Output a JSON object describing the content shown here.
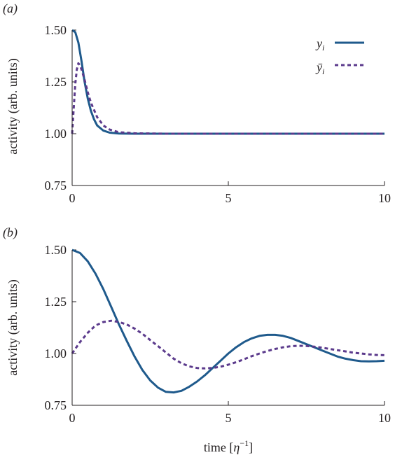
{
  "chart_data": [
    {
      "type": "line",
      "panel_label": "(a)",
      "ylabel": "activity (arb. units)",
      "xlabel": "",
      "xlim": [
        0,
        10
      ],
      "ylim": [
        0.75,
        1.5
      ],
      "xticks": [
        0,
        5,
        10
      ],
      "xtick_labels": [
        "0",
        "5",
        "10"
      ],
      "yticks": [
        0.75,
        1.0,
        1.25,
        1.5
      ],
      "ytick_labels": [
        "0.75",
        "1.00",
        "1.25",
        "1.50"
      ],
      "grid": false,
      "legend_position": "top-right",
      "series": [
        {
          "name": "y_i",
          "color": "#1f5a8c",
          "style": "solid",
          "x": [
            0,
            0.1,
            0.2,
            0.3,
            0.4,
            0.5,
            0.6,
            0.7,
            0.8,
            1.0,
            1.2,
            1.5,
            2.0,
            3.0,
            5.0,
            10.0
          ],
          "y": [
            1.5,
            1.49,
            1.44,
            1.35,
            1.25,
            1.17,
            1.11,
            1.07,
            1.04,
            1.015,
            1.005,
            1.001,
            1.0,
            1.0,
            1.0,
            1.0
          ]
        },
        {
          "name": "ȳ_i",
          "color": "#5b3a8c",
          "style": "dashed",
          "x": [
            0,
            0.05,
            0.1,
            0.15,
            0.2,
            0.25,
            0.3,
            0.4,
            0.5,
            0.6,
            0.8,
            1.0,
            1.2,
            1.5,
            2.0,
            3.0,
            5.0,
            10.0
          ],
          "y": [
            1.0,
            1.12,
            1.24,
            1.31,
            1.34,
            1.33,
            1.31,
            1.26,
            1.2,
            1.15,
            1.08,
            1.04,
            1.02,
            1.007,
            1.002,
            1.0,
            1.0,
            1.0
          ]
        }
      ]
    },
    {
      "type": "line",
      "panel_label": "(b)",
      "ylabel": "activity (arb. units)",
      "xlabel": "time [η⁻¹]",
      "xlim": [
        0,
        10
      ],
      "ylim": [
        0.75,
        1.5
      ],
      "xticks": [
        0,
        5,
        10
      ],
      "xtick_labels": [
        "0",
        "5",
        "10"
      ],
      "yticks": [
        0.75,
        1.0,
        1.25,
        1.5
      ],
      "ytick_labels": [
        "0.75",
        "1.00",
        "1.25",
        "1.50"
      ],
      "grid": false,
      "series": [
        {
          "name": "y_i",
          "color": "#1f5a8c",
          "style": "solid",
          "x": [
            0,
            0.25,
            0.5,
            0.75,
            1.0,
            1.25,
            1.5,
            1.75,
            2.0,
            2.25,
            2.5,
            2.75,
            3.0,
            3.25,
            3.5,
            3.75,
            4.0,
            4.25,
            4.5,
            4.75,
            5.0,
            5.25,
            5.5,
            5.75,
            6.0,
            6.25,
            6.5,
            6.75,
            7.0,
            7.25,
            7.5,
            7.75,
            8.0,
            8.25,
            8.5,
            8.75,
            9.0,
            9.25,
            9.5,
            9.75,
            10.0
          ],
          "y": [
            1.5,
            1.485,
            1.445,
            1.385,
            1.31,
            1.225,
            1.14,
            1.06,
            0.985,
            0.92,
            0.87,
            0.835,
            0.815,
            0.812,
            0.82,
            0.84,
            0.865,
            0.895,
            0.93,
            0.965,
            1.0,
            1.03,
            1.055,
            1.073,
            1.085,
            1.09,
            1.09,
            1.085,
            1.075,
            1.06,
            1.045,
            1.03,
            1.015,
            1.0,
            0.985,
            0.975,
            0.968,
            0.963,
            0.962,
            0.963,
            0.965
          ]
        },
        {
          "name": "ȳ_i",
          "color": "#5b3a8c",
          "style": "dashed",
          "x": [
            0,
            0.25,
            0.5,
            0.75,
            1.0,
            1.25,
            1.5,
            1.75,
            2.0,
            2.25,
            2.5,
            2.75,
            3.0,
            3.25,
            3.5,
            3.75,
            4.0,
            4.25,
            4.5,
            4.75,
            5.0,
            5.25,
            5.5,
            5.75,
            6.0,
            6.25,
            6.5,
            6.75,
            7.0,
            7.25,
            7.5,
            7.75,
            8.0,
            8.25,
            8.5,
            8.75,
            9.0,
            9.25,
            9.5,
            9.75,
            10.0
          ],
          "y": [
            1.0,
            1.055,
            1.1,
            1.135,
            1.152,
            1.158,
            1.152,
            1.14,
            1.12,
            1.095,
            1.065,
            1.035,
            1.005,
            0.975,
            0.953,
            0.938,
            0.93,
            0.928,
            0.93,
            0.936,
            0.946,
            0.958,
            0.972,
            0.987,
            1.0,
            1.012,
            1.022,
            1.03,
            1.035,
            1.037,
            1.036,
            1.033,
            1.028,
            1.022,
            1.016,
            1.01,
            1.004,
            1.0,
            0.996,
            0.993,
            0.992
          ]
        }
      ]
    }
  ]
}
